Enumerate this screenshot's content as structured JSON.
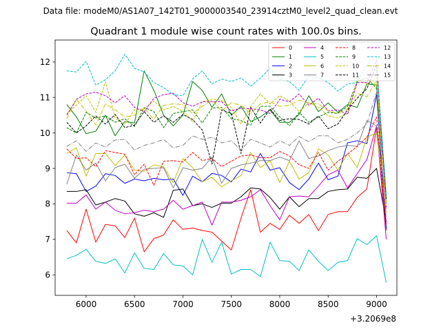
{
  "suptitle": "Data file: modeM0/AS1A07_142T01_9000003540_23914cztM0_level2_quad_clean.evt",
  "chart_data": {
    "type": "line",
    "title": "Quadrant 1 module wise count rates with 100.0s bins.",
    "xlabel": "",
    "ylabel": "",
    "x_offset_label": "+3.2069e8",
    "xlim": [
      5680,
      9210
    ],
    "ylim": [
      5.42,
      12.62
    ],
    "xticks": [
      6000,
      6500,
      7000,
      7500,
      8000,
      8500,
      9000
    ],
    "xtick_labels": [
      "6000",
      "6500",
      "7000",
      "7500",
      "8000",
      "8500",
      "9000"
    ],
    "yticks": [
      6,
      7,
      8,
      9,
      10,
      11,
      12
    ],
    "ytick_labels": [
      "6",
      "7",
      "8",
      "9",
      "10",
      "11",
      "12"
    ],
    "grid": false,
    "legend": {
      "location": "top-right",
      "columns": 4
    },
    "x": [
      5800,
      5900,
      6000,
      6100,
      6200,
      6300,
      6400,
      6500,
      6600,
      6700,
      6800,
      6900,
      7000,
      7100,
      7200,
      7300,
      7400,
      7500,
      7600,
      7700,
      7800,
      7900,
      8000,
      8100,
      8200,
      8300,
      8400,
      8500,
      8600,
      8700,
      8800,
      8900,
      9000,
      9100
    ],
    "series": [
      {
        "name": "0",
        "color": "#ff0000",
        "dash": "solid",
        "values": [
          7.25,
          6.9,
          7.85,
          6.92,
          7.42,
          7.38,
          7.05,
          7.6,
          6.65,
          7.02,
          7.12,
          7.55,
          7.28,
          7.32,
          7.25,
          7.2,
          6.95,
          6.7,
          7.6,
          8.4,
          7.2,
          7.45,
          7.28,
          7.68,
          7.45,
          7.7,
          7.25,
          7.7,
          7.78,
          7.78,
          8.18,
          8.42,
          10.15,
          7.25
        ]
      },
      {
        "name": "1",
        "color": "#008000",
        "dash": "solid",
        "values": [
          10.8,
          10.45,
          9.98,
          10.05,
          10.5,
          9.92,
          10.32,
          10.28,
          11.75,
          11.2,
          10.5,
          10.2,
          10.5,
          11.45,
          11.2,
          10.72,
          11.1,
          10.5,
          10.75,
          10.32,
          10.45,
          10.65,
          10.3,
          10.3,
          10.52,
          11.05,
          10.6,
          10.85,
          10.58,
          10.8,
          10.72,
          11.38,
          11.35,
          8.12
        ]
      },
      {
        "name": "2",
        "color": "#0000ff",
        "dash": "solid",
        "values": [
          8.88,
          8.85,
          8.35,
          8.5,
          8.85,
          8.8,
          8.58,
          8.7,
          8.65,
          8.72,
          8.68,
          8.7,
          8.24,
          8.78,
          8.62,
          8.86,
          8.8,
          8.62,
          8.98,
          8.9,
          9.42,
          8.95,
          9.02,
          8.6,
          8.4,
          8.7,
          9.15,
          8.68,
          8.78,
          9.72,
          9.78,
          9.7,
          11.08,
          7.3
        ]
      },
      {
        "name": "3",
        "color": "#000000",
        "dash": "solid",
        "values": [
          8.35,
          8.35,
          8.4,
          7.97,
          8.05,
          8.15,
          8.08,
          7.72,
          7.65,
          7.75,
          7.62,
          8.38,
          8.42,
          7.95,
          8.0,
          7.9,
          8.02,
          8.02,
          8.2,
          8.45,
          8.42,
          8.18,
          7.85,
          8.2,
          7.92,
          8.15,
          8.15,
          8.35,
          8.4,
          8.42,
          8.75,
          8.72,
          9.0,
          7.5
        ]
      },
      {
        "name": "4",
        "color": "#bf00bf",
        "dash": "solid",
        "values": [
          8.02,
          8.02,
          8.25,
          7.85,
          8.05,
          7.82,
          7.72,
          7.75,
          7.82,
          7.78,
          7.85,
          8.1,
          7.85,
          7.95,
          8.05,
          7.4,
          8.05,
          8.05,
          8.1,
          8.2,
          8.4,
          7.95,
          7.55,
          8.2,
          8.22,
          8.2,
          8.5,
          8.82,
          8.95,
          8.45,
          8.85,
          9.25,
          10.2,
          7.0
        ]
      },
      {
        "name": "5",
        "color": "#00bfbf",
        "dash": "solid",
        "values": [
          6.45,
          6.55,
          6.72,
          6.38,
          6.32,
          6.45,
          6.05,
          6.62,
          6.18,
          6.15,
          6.6,
          6.28,
          6.25,
          6.0,
          7.0,
          6.35,
          6.92,
          6.02,
          6.15,
          6.15,
          5.95,
          6.92,
          6.4,
          6.38,
          6.12,
          6.7,
          6.38,
          6.12,
          6.35,
          6.4,
          7.02,
          6.85,
          7.1,
          5.78
        ]
      },
      {
        "name": "6",
        "color": "#bfbf00",
        "dash": "solid",
        "values": [
          9.42,
          9.58,
          8.78,
          9.42,
          9.42,
          9.08,
          9.38,
          8.95,
          8.92,
          9.1,
          9.05,
          8.6,
          9.28,
          9.02,
          8.62,
          8.75,
          8.48,
          8.65,
          8.8,
          9.45,
          9.02,
          9.22,
          8.6,
          9.2,
          8.7,
          8.88,
          9.55,
          9.38,
          8.95,
          9.42,
          9.02,
          9.88,
          10.0,
          7.75
        ]
      },
      {
        "name": "7",
        "color": "#808080",
        "dash": "solid",
        "values": [
          8.55,
          9.38,
          8.95,
          9.15,
          8.65,
          9.02,
          9.12,
          8.72,
          8.98,
          9.0,
          9.02,
          8.45,
          9.02,
          8.95,
          9.0,
          9.32,
          8.58,
          9.0,
          9.1,
          9.15,
          9.22,
          9.22,
          9.32,
          9.22,
          9.78,
          9.28,
          9.35,
          9.5,
          9.6,
          9.65,
          9.62,
          10.35,
          10.2,
          8.05
        ]
      },
      {
        "name": "8",
        "color": "#ff0000",
        "dash": "dashed",
        "values": [
          9.55,
          9.28,
          9.3,
          9.05,
          9.5,
          9.45,
          9.4,
          8.82,
          9.12,
          8.52,
          9.2,
          9.22,
          9.18,
          9.45,
          9.22,
          9.28,
          9.05,
          9.2,
          9.35,
          9.38,
          9.3,
          9.3,
          9.48,
          9.35,
          9.1,
          9.0,
          9.45,
          8.95,
          9.2,
          9.4,
          9.62,
          9.88,
          10.45,
          7.4
        ]
      },
      {
        "name": "9",
        "color": "#008000",
        "dash": "dashed",
        "values": [
          10.15,
          10.0,
          10.58,
          10.42,
          10.48,
          10.3,
          10.4,
          10.18,
          10.72,
          10.6,
          10.15,
          10.55,
          10.6,
          10.65,
          10.28,
          10.7,
          10.72,
          10.4,
          10.35,
          10.22,
          10.75,
          10.75,
          10.45,
          10.2,
          10.58,
          10.3,
          10.45,
          10.58,
          10.55,
          10.75,
          11.45,
          11.55,
          11.25,
          8.05
        ]
      },
      {
        "name": "10",
        "color": "#bfbf00",
        "dash": "dashed",
        "values": [
          10.55,
          10.78,
          11.05,
          10.58,
          11.45,
          10.42,
          10.25,
          10.65,
          10.68,
          10.9,
          10.65,
          10.75,
          10.6,
          10.32,
          10.88,
          10.95,
          10.92,
          10.72,
          10.25,
          10.75,
          11.1,
          10.82,
          11.05,
          10.9,
          10.6,
          10.85,
          10.72,
          10.48,
          10.42,
          10.55,
          11.52,
          11.38,
          11.55,
          8.0
        ]
      },
      {
        "name": "11",
        "color": "#000000",
        "dash": "dashed",
        "values": [
          10.3,
          10.0,
          10.2,
          10.48,
          10.25,
          10.52,
          10.15,
          10.22,
          10.6,
          10.3,
          10.48,
          10.3,
          10.52,
          10.38,
          10.08,
          9.12,
          10.65,
          10.55,
          9.42,
          10.72,
          10.28,
          10.68,
          10.35,
          10.4,
          10.38,
          10.25,
          10.48,
          10.12,
          10.25,
          10.65,
          10.98,
          11.25,
          11.92,
          8.15
        ]
      },
      {
        "name": "12",
        "color": "#bf00bf",
        "dash": "dashed",
        "values": [
          10.5,
          10.95,
          11.1,
          11.15,
          11.05,
          10.85,
          11.05,
          10.72,
          10.6,
          10.98,
          11.08,
          11.12,
          10.85,
          10.75,
          10.88,
          10.88,
          10.88,
          10.62,
          10.7,
          10.68,
          10.65,
          10.55,
          10.95,
          10.88,
          11.1,
          10.78,
          10.98,
          10.62,
          10.65,
          10.52,
          11.42,
          11.42,
          12.05,
          7.85
        ]
      },
      {
        "name": "13",
        "color": "#00bfbf",
        "dash": "dashed",
        "values": [
          11.75,
          11.72,
          12.02,
          11.35,
          11.5,
          11.75,
          12.22,
          11.82,
          11.72,
          11.42,
          11.28,
          11.08,
          11.05,
          11.52,
          11.75,
          11.38,
          11.52,
          11.45,
          11.55,
          11.32,
          11.55,
          11.82,
          11.52,
          11.45,
          11.2,
          11.6,
          11.55,
          11.42,
          11.18,
          11.38,
          11.42,
          11.92,
          11.88,
          8.25
        ]
      },
      {
        "name": "14",
        "color": "#bfbf00",
        "dash": "dashdot",
        "values": [
          10.4,
          10.95,
          10.62,
          10.22,
          10.82,
          10.65,
          10.45,
          10.5,
          10.7,
          10.38,
          10.78,
          10.82,
          10.8,
          10.55,
          10.75,
          10.92,
          10.62,
          10.85,
          10.78,
          10.55,
          10.82,
          10.88,
          10.75,
          10.78,
          10.92,
          10.85,
          10.82,
          10.62,
          10.55,
          10.68,
          11.12,
          11.02,
          11.48,
          7.95
        ]
      },
      {
        "name": "15",
        "color": "#808080",
        "dash": "dashdot",
        "values": [
          9.62,
          9.78,
          9.48,
          9.72,
          9.6,
          9.8,
          9.82,
          9.52,
          9.65,
          9.72,
          9.82,
          9.58,
          9.65,
          9.92,
          9.82,
          9.88,
          9.72,
          9.78,
          9.52,
          9.82,
          9.72,
          9.6,
          9.78,
          9.65,
          9.9,
          9.75,
          9.92,
          9.92,
          9.72,
          9.82,
          10.0,
          10.25,
          11.15,
          7.55
        ]
      }
    ]
  }
}
